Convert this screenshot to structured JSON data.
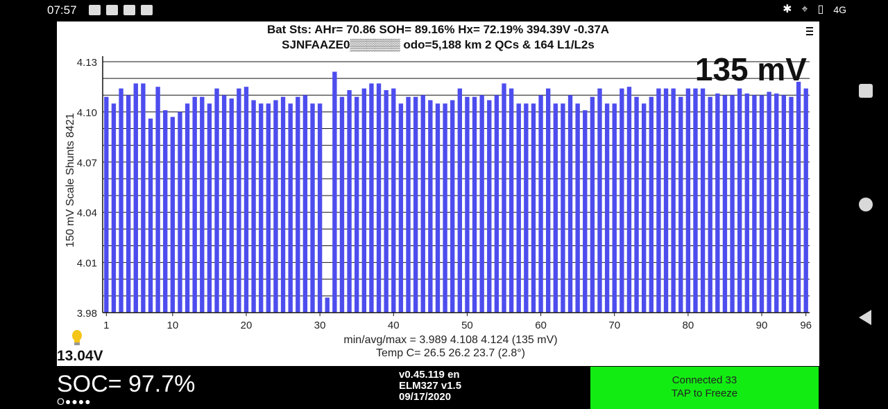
{
  "status_bar": {
    "time": "07:57",
    "network": "4G",
    "left_icons": [
      "image-icon",
      "document-icon",
      "car-icon",
      "mail-icon"
    ],
    "right_icons": [
      "bluetooth-icon",
      "location-icon",
      "vibrate-icon"
    ]
  },
  "header": {
    "line1": "Bat Sts:  AHr= 70.86  SOH= 89.16%   Hx= 72.19%   394.39V -0.37A",
    "line2": "SJNFAAZE0▒▒▒▒▒▒ odo=5,188 km  2 QCs & 164 L1/L2s",
    "spread": "135 mV"
  },
  "chart_data": {
    "type": "bar",
    "ylabel": "150 mV Scale   Shunts 8421",
    "ylim": [
      3.98,
      4.13
    ],
    "y_ticks": [
      "4.13",
      "4.10",
      "4.07",
      "4.04",
      "4.01",
      "3.98"
    ],
    "x_ticks": [
      "1",
      "10",
      "20",
      "30",
      "40",
      "50",
      "60",
      "70",
      "80",
      "90",
      "96"
    ],
    "x_tick_positions": [
      1,
      10,
      20,
      30,
      40,
      50,
      60,
      70,
      80,
      90,
      96
    ],
    "grid": "horizontal",
    "bar_color": "#4d4dee",
    "values": [
      4.109,
      4.105,
      4.114,
      4.11,
      4.117,
      4.117,
      4.096,
      4.115,
      4.101,
      4.097,
      4.1,
      4.105,
      4.109,
      4.109,
      4.105,
      4.114,
      4.11,
      4.108,
      4.114,
      4.115,
      4.107,
      4.105,
      4.105,
      4.107,
      4.109,
      4.105,
      4.109,
      4.11,
      4.105,
      4.105,
      3.989,
      4.124,
      4.109,
      4.113,
      4.109,
      4.114,
      4.117,
      4.117,
      4.113,
      4.114,
      4.105,
      4.109,
      4.109,
      4.11,
      4.107,
      4.105,
      4.105,
      4.107,
      4.114,
      4.109,
      4.109,
      4.11,
      4.107,
      4.11,
      4.117,
      4.114,
      4.105,
      4.105,
      4.105,
      4.11,
      4.114,
      4.105,
      4.105,
      4.11,
      4.105,
      4.101,
      4.109,
      4.114,
      4.105,
      4.105,
      4.114,
      4.115,
      4.109,
      4.105,
      4.109,
      4.114,
      4.114,
      4.114,
      4.109,
      4.114,
      4.114,
      4.114,
      4.109,
      4.111,
      4.11,
      4.11,
      4.114,
      4.111,
      4.11,
      4.11,
      4.112,
      4.111,
      4.11,
      4.109,
      4.118,
      4.114
    ]
  },
  "stats": {
    "minavgmax": "min/avg/max = 3.989 4.108 4.124  (135 mV)",
    "temp": "Temp C= 26.5  26.2  23.7  (2.8°)"
  },
  "aux_voltage": "13.04V",
  "soc": "SOC= 97.7%",
  "soc_dots": "O●●●●",
  "version": {
    "line1": "v0.45.119 en",
    "line2": "ELM327 v1.5",
    "line3": "09/17/2020"
  },
  "connection": {
    "line1": "Connected 33",
    "line2": "TAP to Freeze",
    "color": "#13ec13"
  }
}
